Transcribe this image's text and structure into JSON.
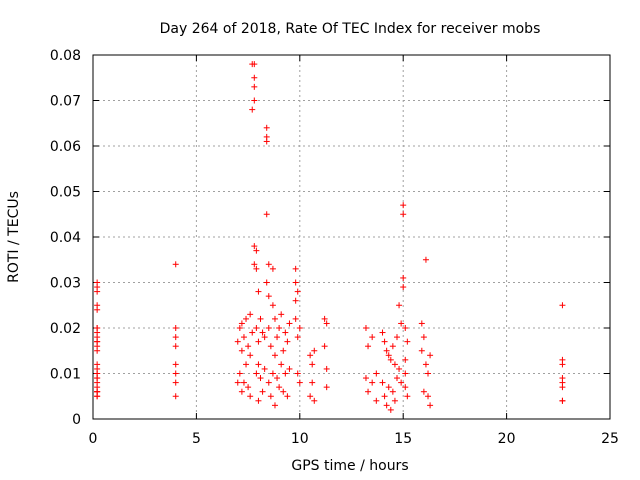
{
  "chart_data": {
    "type": "scatter",
    "title": "Day 264 of 2018, Rate Of TEC Index for receiver mobs",
    "xlabel": "GPS time / hours",
    "ylabel": "ROTI / TECUs",
    "xlim": [
      0,
      25
    ],
    "ylim": [
      0,
      0.08
    ],
    "x_ticks": [
      "0",
      "5",
      "10",
      "15",
      "20",
      "25"
    ],
    "y_ticks": [
      "0",
      "0.01",
      "0.02",
      "0.03",
      "0.04",
      "0.05",
      "0.06",
      "0.07",
      "0.08"
    ],
    "grid": true,
    "legend": "none",
    "marker": "plus",
    "color": "#ff0000",
    "series": [
      {
        "x": [
          0.2,
          0.2,
          0.2,
          0.2,
          0.2,
          0.2,
          0.2,
          0.2,
          0.2,
          0.2,
          0.2,
          0.2,
          0.2,
          0.2,
          0.2,
          0.2,
          0.2,
          0.2,
          0.2,
          0.2,
          0.2,
          0.2,
          0.2,
          0.2,
          0.2,
          0.2,
          4.0,
          4.0,
          4.0,
          4.0,
          4.0,
          4.0,
          4.0,
          4.0,
          7.0,
          7.0,
          7.1,
          7.1,
          7.2,
          7.2,
          7.2,
          7.3,
          7.3,
          7.4,
          7.4,
          7.5,
          7.5,
          7.6,
          7.6,
          7.6,
          7.7,
          7.7,
          7.7,
          7.8,
          7.8,
          7.8,
          7.8,
          7.8,
          7.8,
          7.9,
          7.9,
          7.9,
          7.9,
          8.0,
          8.0,
          8.0,
          8.0,
          8.1,
          8.1,
          8.2,
          8.2,
          8.3,
          8.3,
          8.4,
          8.4,
          8.4,
          8.4,
          8.4,
          8.5,
          8.5,
          8.5,
          8.5,
          8.6,
          8.6,
          8.7,
          8.7,
          8.7,
          8.8,
          8.8,
          8.8,
          8.9,
          8.9,
          9.0,
          9.0,
          9.1,
          9.1,
          9.2,
          9.2,
          9.3,
          9.3,
          9.4,
          9.4,
          9.5,
          9.5,
          9.8,
          9.8,
          9.8,
          9.8,
          9.9,
          9.9,
          9.9,
          10.0,
          10.0,
          10.5,
          10.5,
          10.6,
          10.6,
          10.7,
          10.7,
          11.2,
          11.2,
          11.3,
          11.3,
          11.3,
          13.2,
          13.2,
          13.3,
          13.3,
          13.5,
          13.5,
          13.7,
          13.7,
          14.0,
          14.0,
          14.1,
          14.1,
          14.2,
          14.2,
          14.3,
          14.3,
          14.4,
          14.4,
          14.5,
          14.5,
          14.6,
          14.6,
          14.7,
          14.7,
          14.8,
          14.8,
          14.9,
          14.9,
          15.0,
          15.0,
          15.0,
          15.0,
          15.1,
          15.1,
          15.1,
          15.1,
          15.2,
          15.2,
          15.9,
          15.9,
          16.0,
          16.0,
          16.1,
          16.1,
          16.2,
          16.2,
          16.3,
          16.3,
          22.7,
          22.7,
          22.7,
          22.7,
          22.7,
          22.7,
          22.7,
          22.7
        ],
        "y": [
          0.03,
          0.029,
          0.028,
          0.025,
          0.024,
          0.02,
          0.02,
          0.019,
          0.018,
          0.017,
          0.017,
          0.016,
          0.015,
          0.012,
          0.011,
          0.01,
          0.01,
          0.009,
          0.009,
          0.008,
          0.007,
          0.006,
          0.006,
          0.006,
          0.005,
          0.005,
          0.034,
          0.02,
          0.018,
          0.016,
          0.012,
          0.01,
          0.008,
          0.005,
          0.017,
          0.008,
          0.02,
          0.01,
          0.021,
          0.015,
          0.006,
          0.018,
          0.008,
          0.022,
          0.012,
          0.016,
          0.007,
          0.023,
          0.014,
          0.005,
          0.078,
          0.068,
          0.019,
          0.078,
          0.075,
          0.073,
          0.07,
          0.038,
          0.034,
          0.037,
          0.033,
          0.02,
          0.01,
          0.028,
          0.017,
          0.012,
          0.004,
          0.022,
          0.009,
          0.019,
          0.006,
          0.018,
          0.011,
          0.064,
          0.062,
          0.061,
          0.045,
          0.03,
          0.034,
          0.027,
          0.02,
          0.008,
          0.016,
          0.005,
          0.033,
          0.025,
          0.01,
          0.022,
          0.014,
          0.003,
          0.018,
          0.009,
          0.02,
          0.007,
          0.023,
          0.012,
          0.015,
          0.006,
          0.019,
          0.01,
          0.017,
          0.005,
          0.021,
          0.011,
          0.033,
          0.03,
          0.026,
          0.022,
          0.028,
          0.018,
          0.01,
          0.02,
          0.008,
          0.014,
          0.005,
          0.012,
          0.008,
          0.015,
          0.004,
          0.022,
          0.016,
          0.021,
          0.011,
          0.007,
          0.02,
          0.009,
          0.016,
          0.006,
          0.018,
          0.008,
          0.01,
          0.004,
          0.019,
          0.008,
          0.017,
          0.005,
          0.015,
          0.003,
          0.014,
          0.007,
          0.013,
          0.002,
          0.016,
          0.006,
          0.012,
          0.004,
          0.018,
          0.009,
          0.025,
          0.011,
          0.021,
          0.008,
          0.047,
          0.045,
          0.031,
          0.029,
          0.02,
          0.013,
          0.01,
          0.007,
          0.017,
          0.005,
          0.021,
          0.015,
          0.018,
          0.006,
          0.035,
          0.012,
          0.01,
          0.005,
          0.014,
          0.003,
          0.025,
          0.013,
          0.012,
          0.009,
          0.008,
          0.007,
          0.004,
          0.004
        ]
      }
    ]
  }
}
